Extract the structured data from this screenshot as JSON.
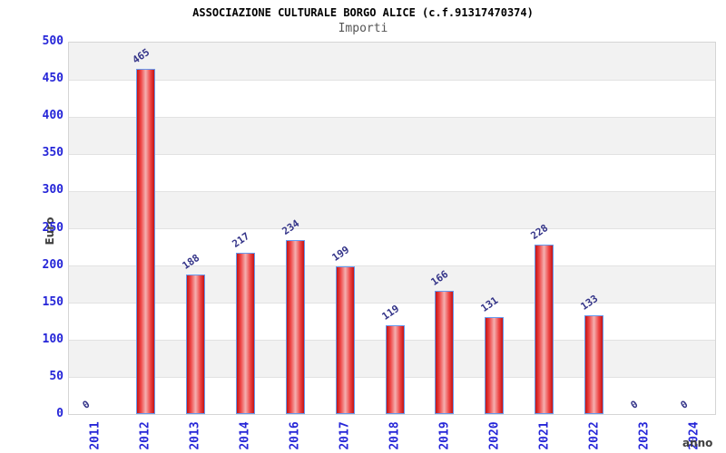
{
  "chart_data": {
    "type": "bar",
    "title": "ASSOCIAZIONE CULTURALE BORGO ALICE (c.f.91317470374)",
    "subtitle": "Importi",
    "xlabel": "anno",
    "ylabel": "Euro",
    "categories": [
      "2011",
      "2012",
      "2013",
      "2014",
      "2016",
      "2017",
      "2018",
      "2019",
      "2020",
      "2021",
      "2022",
      "2023",
      "2024"
    ],
    "values": [
      0,
      465,
      188,
      217,
      234,
      199,
      119,
      166,
      131,
      228,
      133,
      0,
      0
    ],
    "value_labels": [
      "0",
      "465",
      "188",
      "217",
      "234",
      "199",
      "119",
      "166",
      "131",
      "228",
      "133",
      "0",
      "0"
    ],
    "ylim": [
      0,
      500
    ],
    "yticks": [
      500,
      450,
      400,
      350,
      300,
      250,
      200,
      150,
      100,
      50,
      0
    ],
    "grid": true,
    "legend_position": "none",
    "colors": {
      "bar_edge": "#c41414",
      "bar_center": "#f4b0b0",
      "bar_border": "#6699ee",
      "tick_label": "#2626d8",
      "value_label": "#333388",
      "band_gray": "#f2f2f2",
      "band_white": "#ffffff",
      "gridline": "#e2e2e2",
      "plot_border": "#d5d5d5",
      "title": "#000000",
      "subtitle": "#555555",
      "axis_title": "#404040"
    }
  }
}
